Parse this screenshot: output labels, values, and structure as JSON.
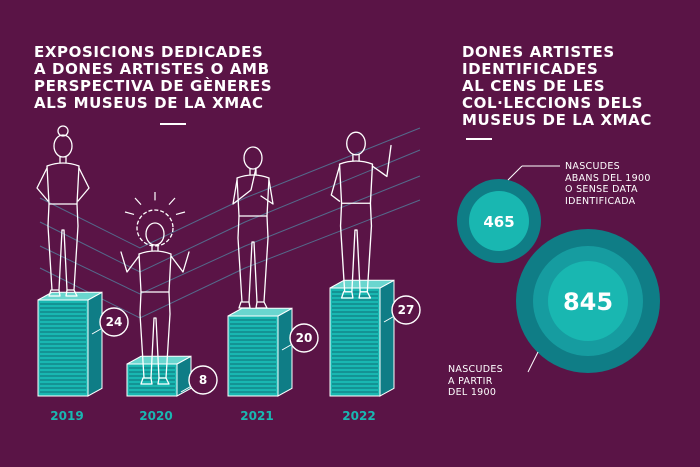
{
  "left_title": [
    "EXPOSICIONS DEDICADES",
    "A DONES ARTISTES O AMB",
    "PERSPECTIVA DE GÈNERES",
    "ALS MUSEUS DE LA XMAC"
  ],
  "right_title": [
    "DONES ARTISTES",
    "IDENTIFICADES",
    "AL CENS DE LES",
    "COL·LECCIONS DELS",
    "MUSEUS DE LA XMAC"
  ],
  "colors": {
    "background": "#5a1446",
    "teal": "#19b7b1",
    "teal_dark": "#0f7d86",
    "outline": "#ffffff"
  },
  "chart_data": [
    {
      "type": "bar",
      "categories": [
        "2019",
        "2020",
        "2021",
        "2022"
      ],
      "values": [
        24,
        8,
        20,
        27
      ],
      "ylim": [
        0,
        27
      ]
    },
    {
      "type": "bubble",
      "series": [
        {
          "value": 465,
          "label": [
            "NASCUDES",
            "ABANS DEL 1900",
            "O SENSE DATA",
            "IDENTIFICADA"
          ]
        },
        {
          "value": 845,
          "label": [
            "NASCUDES",
            "A PARTIR",
            "DEL 1900"
          ]
        }
      ]
    }
  ],
  "icons": [
    "woman-figure-icon"
  ]
}
